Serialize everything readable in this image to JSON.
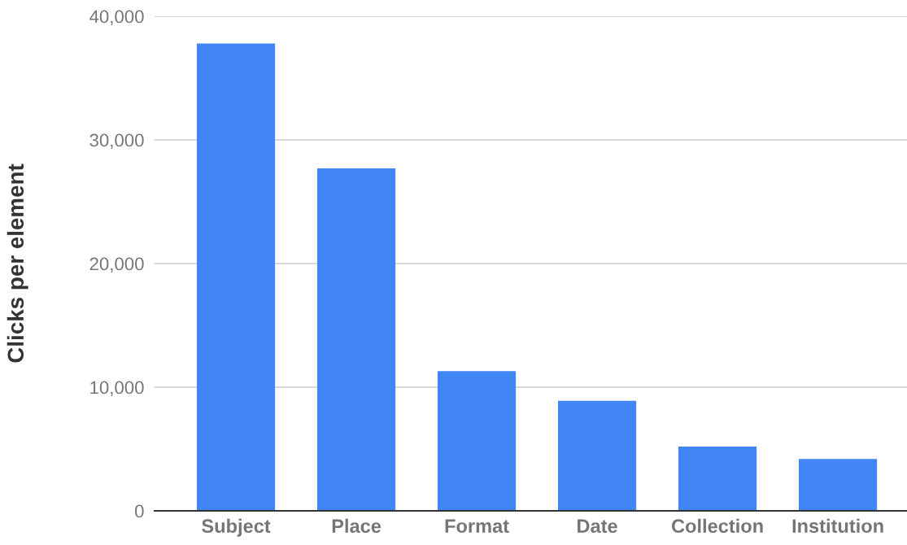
{
  "chart_data": {
    "type": "bar",
    "ylabel": "Clicks per element",
    "categories": [
      "Subject",
      "Place",
      "Format",
      "Date",
      "Collection",
      "Institution"
    ],
    "values": [
      37800,
      27700,
      11300,
      8900,
      5200,
      4200
    ],
    "color": "#4285f4",
    "ylim": [
      0,
      40000
    ],
    "yticks": [
      0,
      {
        "value": 10000,
        "label": "10,000"
      },
      {
        "value": 20000,
        "label": "20,000"
      },
      {
        "value": 30000,
        "label": "30,000"
      },
      {
        "value": 40000,
        "label": "40,000"
      }
    ],
    "grid": "y",
    "legend": false
  }
}
